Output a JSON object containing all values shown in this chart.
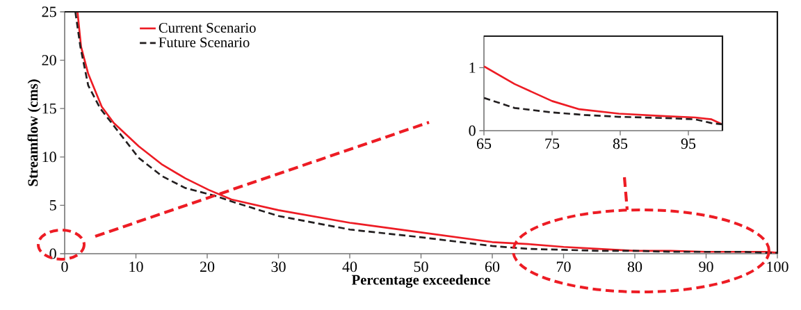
{
  "chart_data": [
    {
      "type": "line",
      "xlabel": "Percentage exceedence",
      "ylabel": "Streamflow (cms)",
      "xlim": [
        0,
        100
      ],
      "xticks": [
        0,
        10,
        20,
        30,
        40,
        50,
        60,
        70,
        80,
        90,
        100
      ],
      "ylim": [
        0,
        25
      ],
      "yticks": [
        0,
        5,
        10,
        15,
        20,
        25
      ],
      "legend": "top left",
      "series": [
        {
          "name": "Current Scenario",
          "color": "#ed1c24",
          "line_style": "solid",
          "x": [
            1.8,
            2.3,
            3.3,
            5.2,
            6.9,
            10.4,
            13.7,
            16.9,
            20.2,
            23.4,
            30,
            40,
            50,
            60,
            65,
            70,
            75,
            80,
            85,
            90,
            95,
            98.4,
            100
          ],
          "values": [
            25,
            21.4,
            18.6,
            15.2,
            13.5,
            11.1,
            9.2,
            7.8,
            6.6,
            5.6,
            4.5,
            3.2,
            2.2,
            1.2,
            1.0,
            0.7,
            0.5,
            0.3,
            0.3,
            0.2,
            0.2,
            0.2,
            0.1
          ]
        },
        {
          "name": "Future Scenario",
          "color": "#231f20",
          "line_style": "dashed",
          "x": [
            1.5,
            2.2,
            3.3,
            5.0,
            6.6,
            10.4,
            13.7,
            16.9,
            21.5,
            23.4,
            30,
            40,
            50,
            60,
            65,
            70,
            75,
            80,
            85,
            90,
            95,
            98.4,
            100
          ],
          "values": [
            25,
            21.4,
            17.4,
            15.0,
            13.5,
            9.9,
            8.0,
            6.8,
            5.9,
            5.4,
            3.9,
            2.5,
            1.7,
            0.8,
            0.5,
            0.4,
            0.3,
            0.3,
            0.2,
            0.2,
            0.2,
            0.1,
            0.1
          ]
        }
      ]
    },
    {
      "type": "line",
      "xlim": [
        65,
        100
      ],
      "xticks": [
        65,
        75,
        85,
        95
      ],
      "ylim": [
        0,
        1.5
      ],
      "yticks": [
        0,
        1
      ],
      "series": [
        {
          "color": "#ed1c24",
          "line_style": "solid",
          "x": [
            65,
            69.5,
            75,
            79,
            84.8,
            91.6,
            96,
            98.4,
            100
          ],
          "values": [
            1.02,
            0.74,
            0.47,
            0.34,
            0.27,
            0.23,
            0.21,
            0.18,
            0.1
          ]
        },
        {
          "color": "#231f20",
          "line_style": "dashed",
          "x": [
            65,
            69.5,
            75,
            79.7,
            84.8,
            91.6,
            96,
            98.4,
            100
          ],
          "values": [
            0.52,
            0.36,
            0.29,
            0.25,
            0.22,
            0.2,
            0.18,
            0.12,
            0.1
          ]
        }
      ]
    }
  ]
}
